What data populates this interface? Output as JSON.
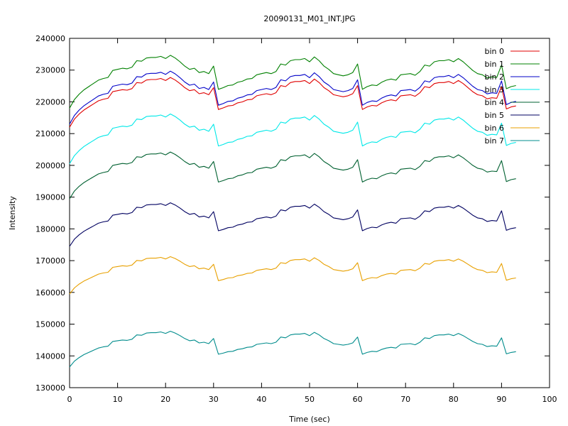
{
  "chart_data": {
    "type": "line",
    "title": "20090131_M01_INT.JPG",
    "xlabel": "Time (sec)",
    "ylabel": "Intensity",
    "xlim": [
      0,
      100
    ],
    "ylim": [
      130000,
      240000
    ],
    "xticks": [
      0,
      10,
      20,
      30,
      40,
      50,
      60,
      70,
      80,
      90,
      100
    ],
    "yticks": [
      130000,
      140000,
      150000,
      160000,
      170000,
      180000,
      190000,
      200000,
      210000,
      220000,
      230000,
      240000
    ],
    "grid": false,
    "legend": "top-right",
    "x": [
      0,
      1,
      2,
      3,
      4,
      5,
      6,
      7,
      8,
      9,
      10,
      11,
      12,
      13,
      14,
      15,
      16,
      17,
      18,
      19,
      20,
      21,
      22,
      23,
      24,
      25,
      26,
      27,
      28,
      29,
      30,
      31,
      32,
      33,
      34,
      35,
      36,
      37,
      38,
      39,
      40,
      41,
      42,
      43,
      44,
      45,
      46,
      47,
      48,
      49,
      50,
      51,
      52,
      53,
      54,
      55,
      56,
      57,
      58,
      59,
      60,
      61,
      62,
      63,
      64,
      65,
      66,
      67,
      68,
      69,
      70,
      71,
      72,
      73,
      74,
      75,
      76,
      77,
      78,
      79,
      80,
      81,
      82,
      83,
      84,
      85,
      86,
      87,
      88,
      89,
      90,
      91,
      92,
      93
    ],
    "base": [
      0.0,
      0.16,
      0.26,
      0.34,
      0.4,
      0.46,
      0.52,
      0.55,
      0.57,
      0.7,
      0.72,
      0.74,
      0.73,
      0.76,
      0.88,
      0.87,
      0.93,
      0.94,
      0.94,
      0.96,
      0.92,
      0.98,
      0.93,
      0.86,
      0.78,
      0.72,
      0.74,
      0.66,
      0.68,
      0.64,
      0.78,
      0.35,
      0.38,
      0.42,
      0.43,
      0.48,
      0.5,
      0.54,
      0.55,
      0.62,
      0.64,
      0.66,
      0.64,
      0.68,
      0.82,
      0.8,
      0.88,
      0.9,
      0.9,
      0.92,
      0.86,
      0.95,
      0.88,
      0.78,
      0.72,
      0.64,
      0.62,
      0.6,
      0.62,
      0.66,
      0.82,
      0.35,
      0.4,
      0.43,
      0.42,
      0.48,
      0.52,
      0.54,
      0.52,
      0.62,
      0.63,
      0.64,
      0.61,
      0.68,
      0.8,
      0.78,
      0.86,
      0.88,
      0.88,
      0.9,
      0.86,
      0.92,
      0.86,
      0.78,
      0.7,
      0.64,
      0.62,
      0.56,
      0.58,
      0.57,
      0.8,
      0.36,
      0.4,
      0.42
    ],
    "series": [
      {
        "name": "bin 0",
        "color": "#e00000",
        "start": 212000,
        "amplitude": 16000
      },
      {
        "name": "bin 1",
        "color": "#008000",
        "start": 218000,
        "amplitude": 17000
      },
      {
        "name": "bin 2",
        "color": "#0000c8",
        "start": 213000,
        "amplitude": 17000
      },
      {
        "name": "bin 3",
        "color": "#00e8e8",
        "start": 200500,
        "amplitude": 16000
      },
      {
        "name": "bin 4",
        "color": "#006030",
        "start": 189500,
        "amplitude": 15000
      },
      {
        "name": "bin 5",
        "color": "#000060",
        "start": 174500,
        "amplitude": 14000
      },
      {
        "name": "bin 6",
        "color": "#e8a000",
        "start": 159500,
        "amplitude": 12000
      },
      {
        "name": "bin 7",
        "color": "#008c8c",
        "start": 136500,
        "amplitude": 11500
      }
    ]
  }
}
